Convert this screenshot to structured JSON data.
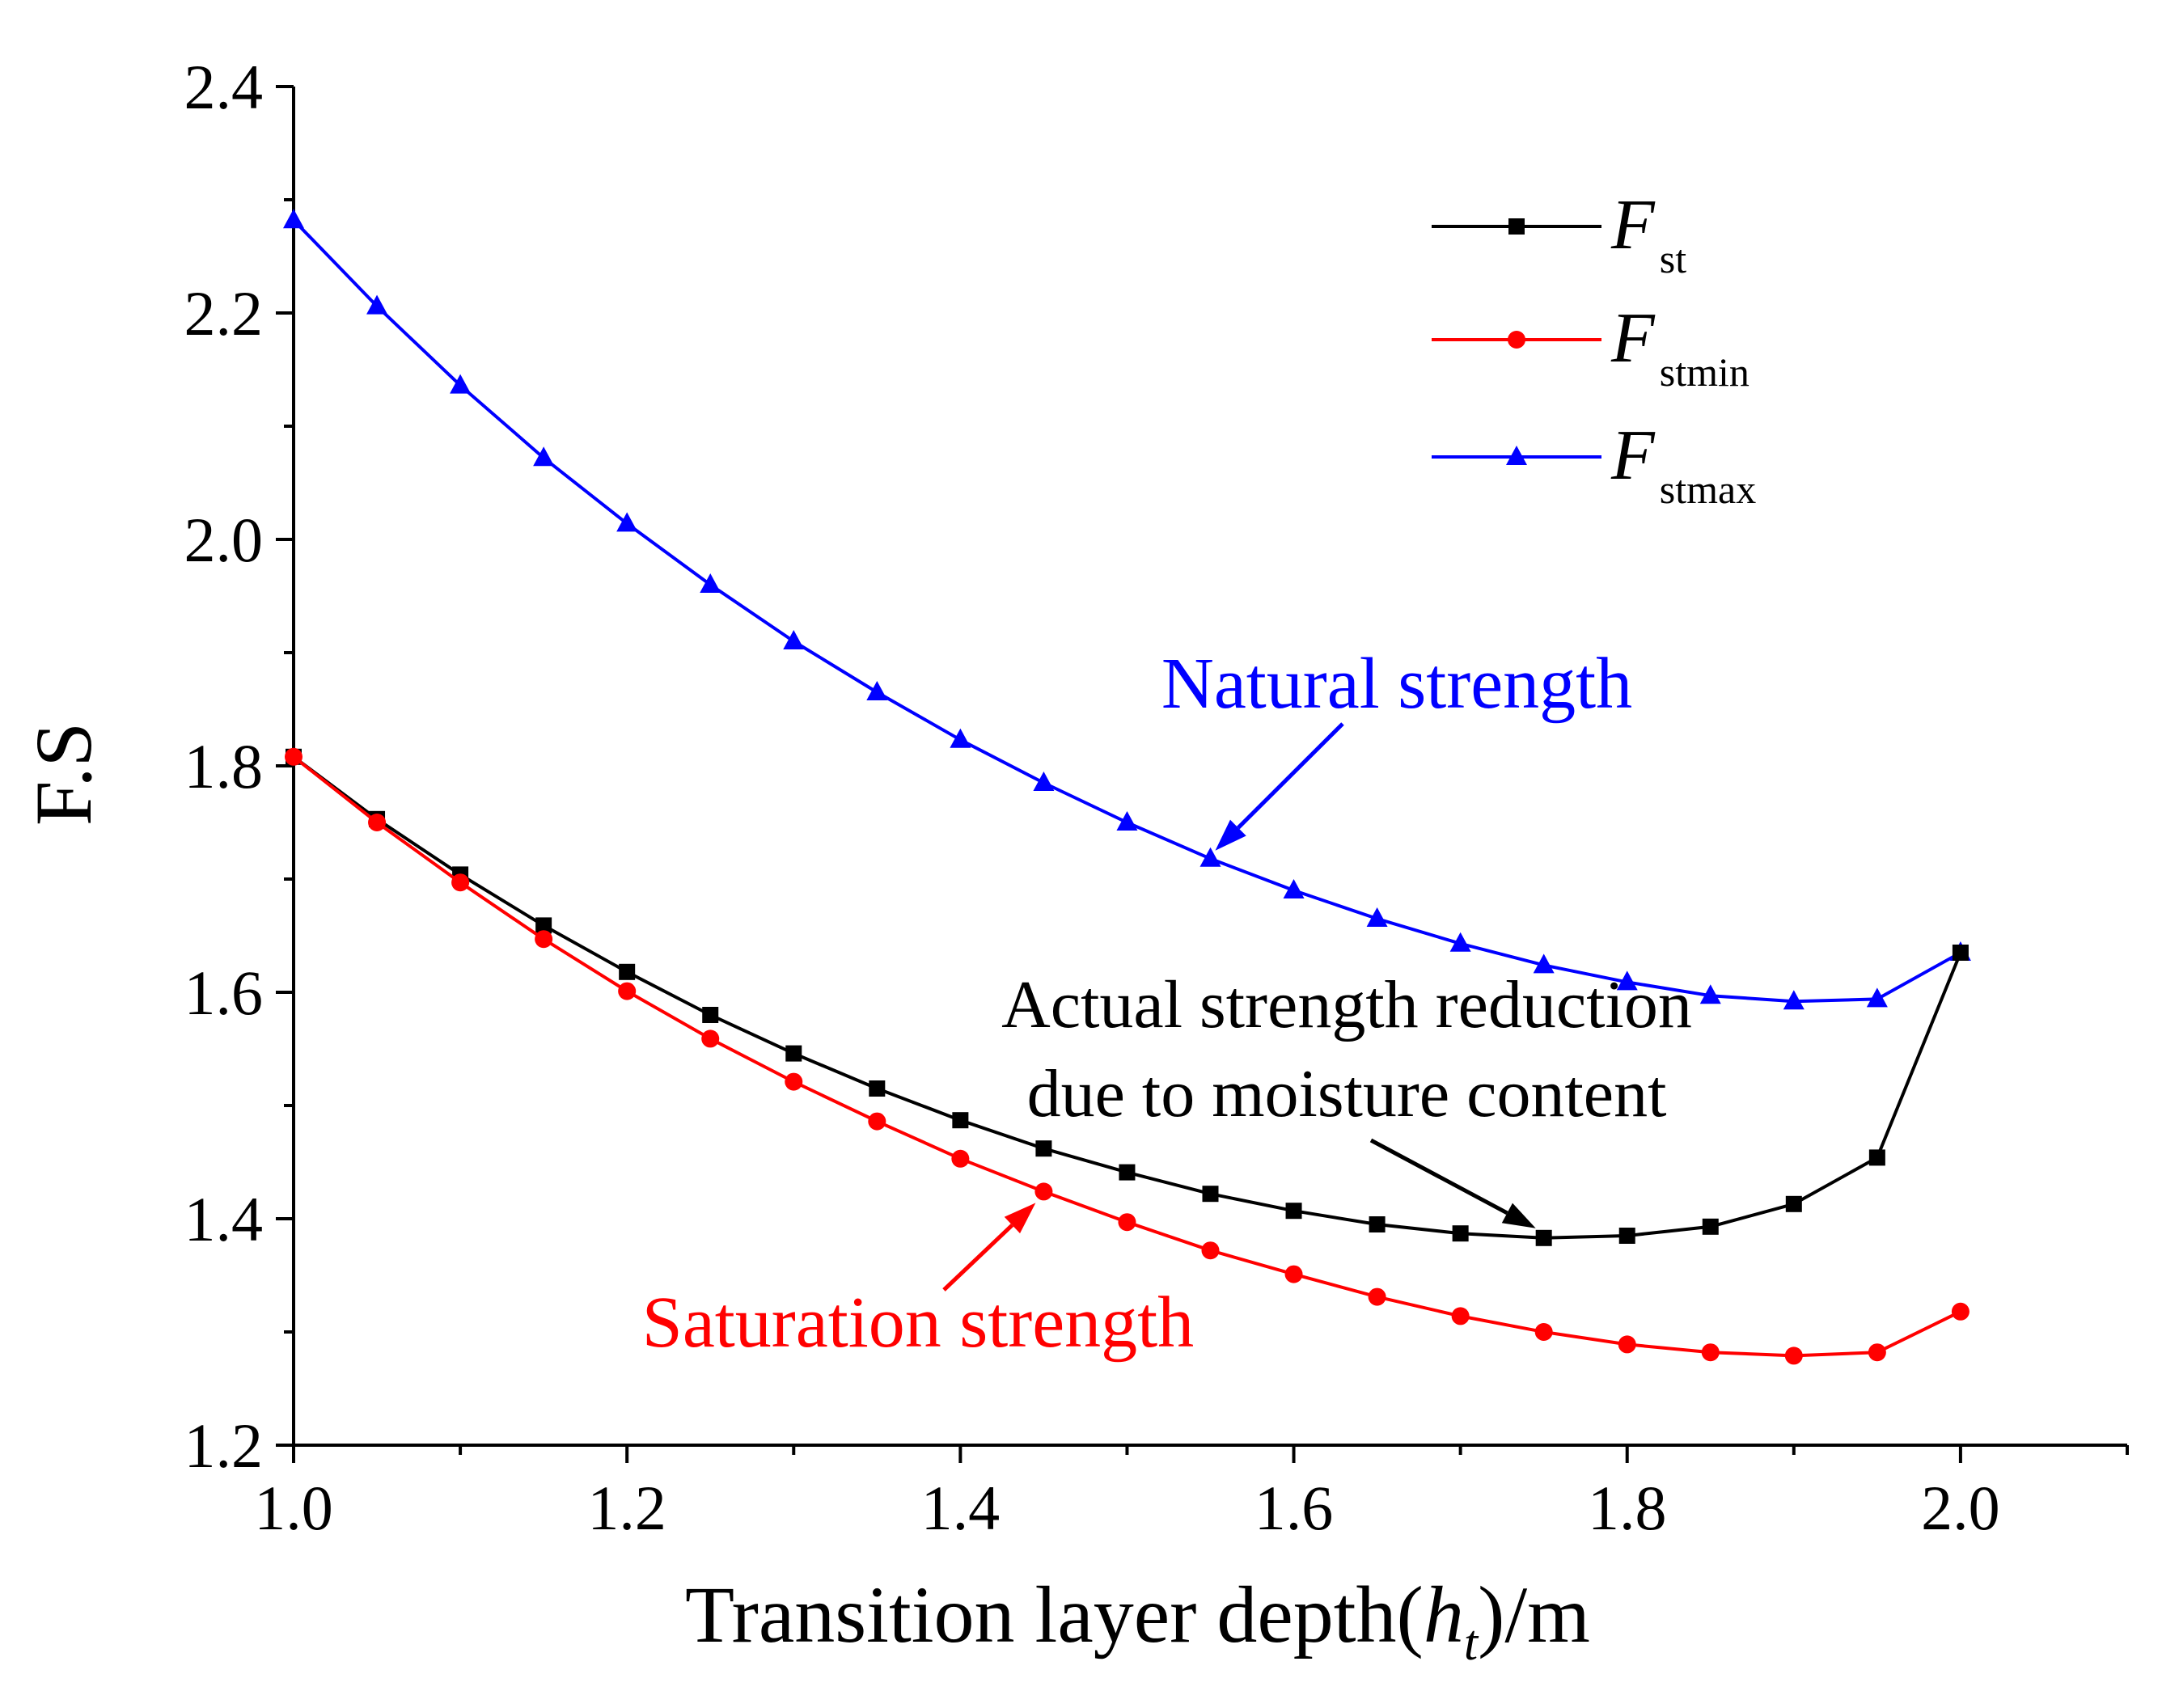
{
  "chart_data": {
    "type": "line",
    "xlabel": "Transition layer depth(h_t)/m",
    "xlabel_main": "Transition layer depth(",
    "xlabel_var": "h",
    "xlabel_sub": "t",
    "xlabel_unit": ")/m",
    "ylabel": "F.S",
    "xlim": [
      1.0,
      2.1
    ],
    "ylim": [
      1.2,
      2.4
    ],
    "xticks": [
      "1.0",
      "1.2",
      "1.4",
      "1.6",
      "1.8",
      "2.0"
    ],
    "yticks": [
      "1.2",
      "1.4",
      "1.6",
      "1.8",
      "2.0",
      "2.2",
      "2.4"
    ],
    "x": [
      1.0,
      1.05,
      1.1,
      1.15,
      1.2,
      1.25,
      1.3,
      1.35,
      1.4,
      1.45,
      1.5,
      1.55,
      1.6,
      1.65,
      1.7,
      1.75,
      1.8,
      1.85,
      1.9,
      1.95,
      2.0
    ],
    "series": [
      {
        "name": "F_st",
        "label_main": "F",
        "label_sub": "st",
        "color": "#000000",
        "marker": "square",
        "values": [
          1.808,
          1.753,
          1.704,
          1.659,
          1.618,
          1.58,
          1.546,
          1.515,
          1.487,
          1.462,
          1.441,
          1.422,
          1.407,
          1.395,
          1.387,
          1.383,
          1.385,
          1.393,
          1.413,
          1.454,
          1.635
        ]
      },
      {
        "name": "F_stmin",
        "label_main": "F",
        "label_sub": "stmin",
        "color": "#ff0000",
        "marker": "circle",
        "values": [
          1.808,
          1.75,
          1.697,
          1.647,
          1.601,
          1.559,
          1.521,
          1.486,
          1.453,
          1.424,
          1.397,
          1.372,
          1.351,
          1.331,
          1.314,
          1.3,
          1.289,
          1.282,
          1.279,
          1.282,
          1.318
        ]
      },
      {
        "name": "F_stmax",
        "label_main": "F",
        "label_sub": "stmax",
        "color": "#0000ff",
        "marker": "triangle",
        "values": [
          2.282,
          2.206,
          2.136,
          2.072,
          2.014,
          1.96,
          1.91,
          1.865,
          1.823,
          1.785,
          1.75,
          1.718,
          1.69,
          1.665,
          1.643,
          1.624,
          1.609,
          1.597,
          1.592,
          1.594,
          1.635
        ]
      }
    ],
    "annotations": [
      {
        "text": "Natural strength",
        "color": "#0000ff",
        "points_to": [
          1.55,
          1.718
        ]
      },
      {
        "text": "Actual strength reduction",
        "text2": "due to moisture content",
        "color": "#000000",
        "points_to": [
          1.75,
          1.383
        ]
      },
      {
        "text": "Saturation strength",
        "color": "#ff0000",
        "points_to": [
          1.45,
          1.424
        ]
      }
    ],
    "legend_position": "top-right"
  }
}
